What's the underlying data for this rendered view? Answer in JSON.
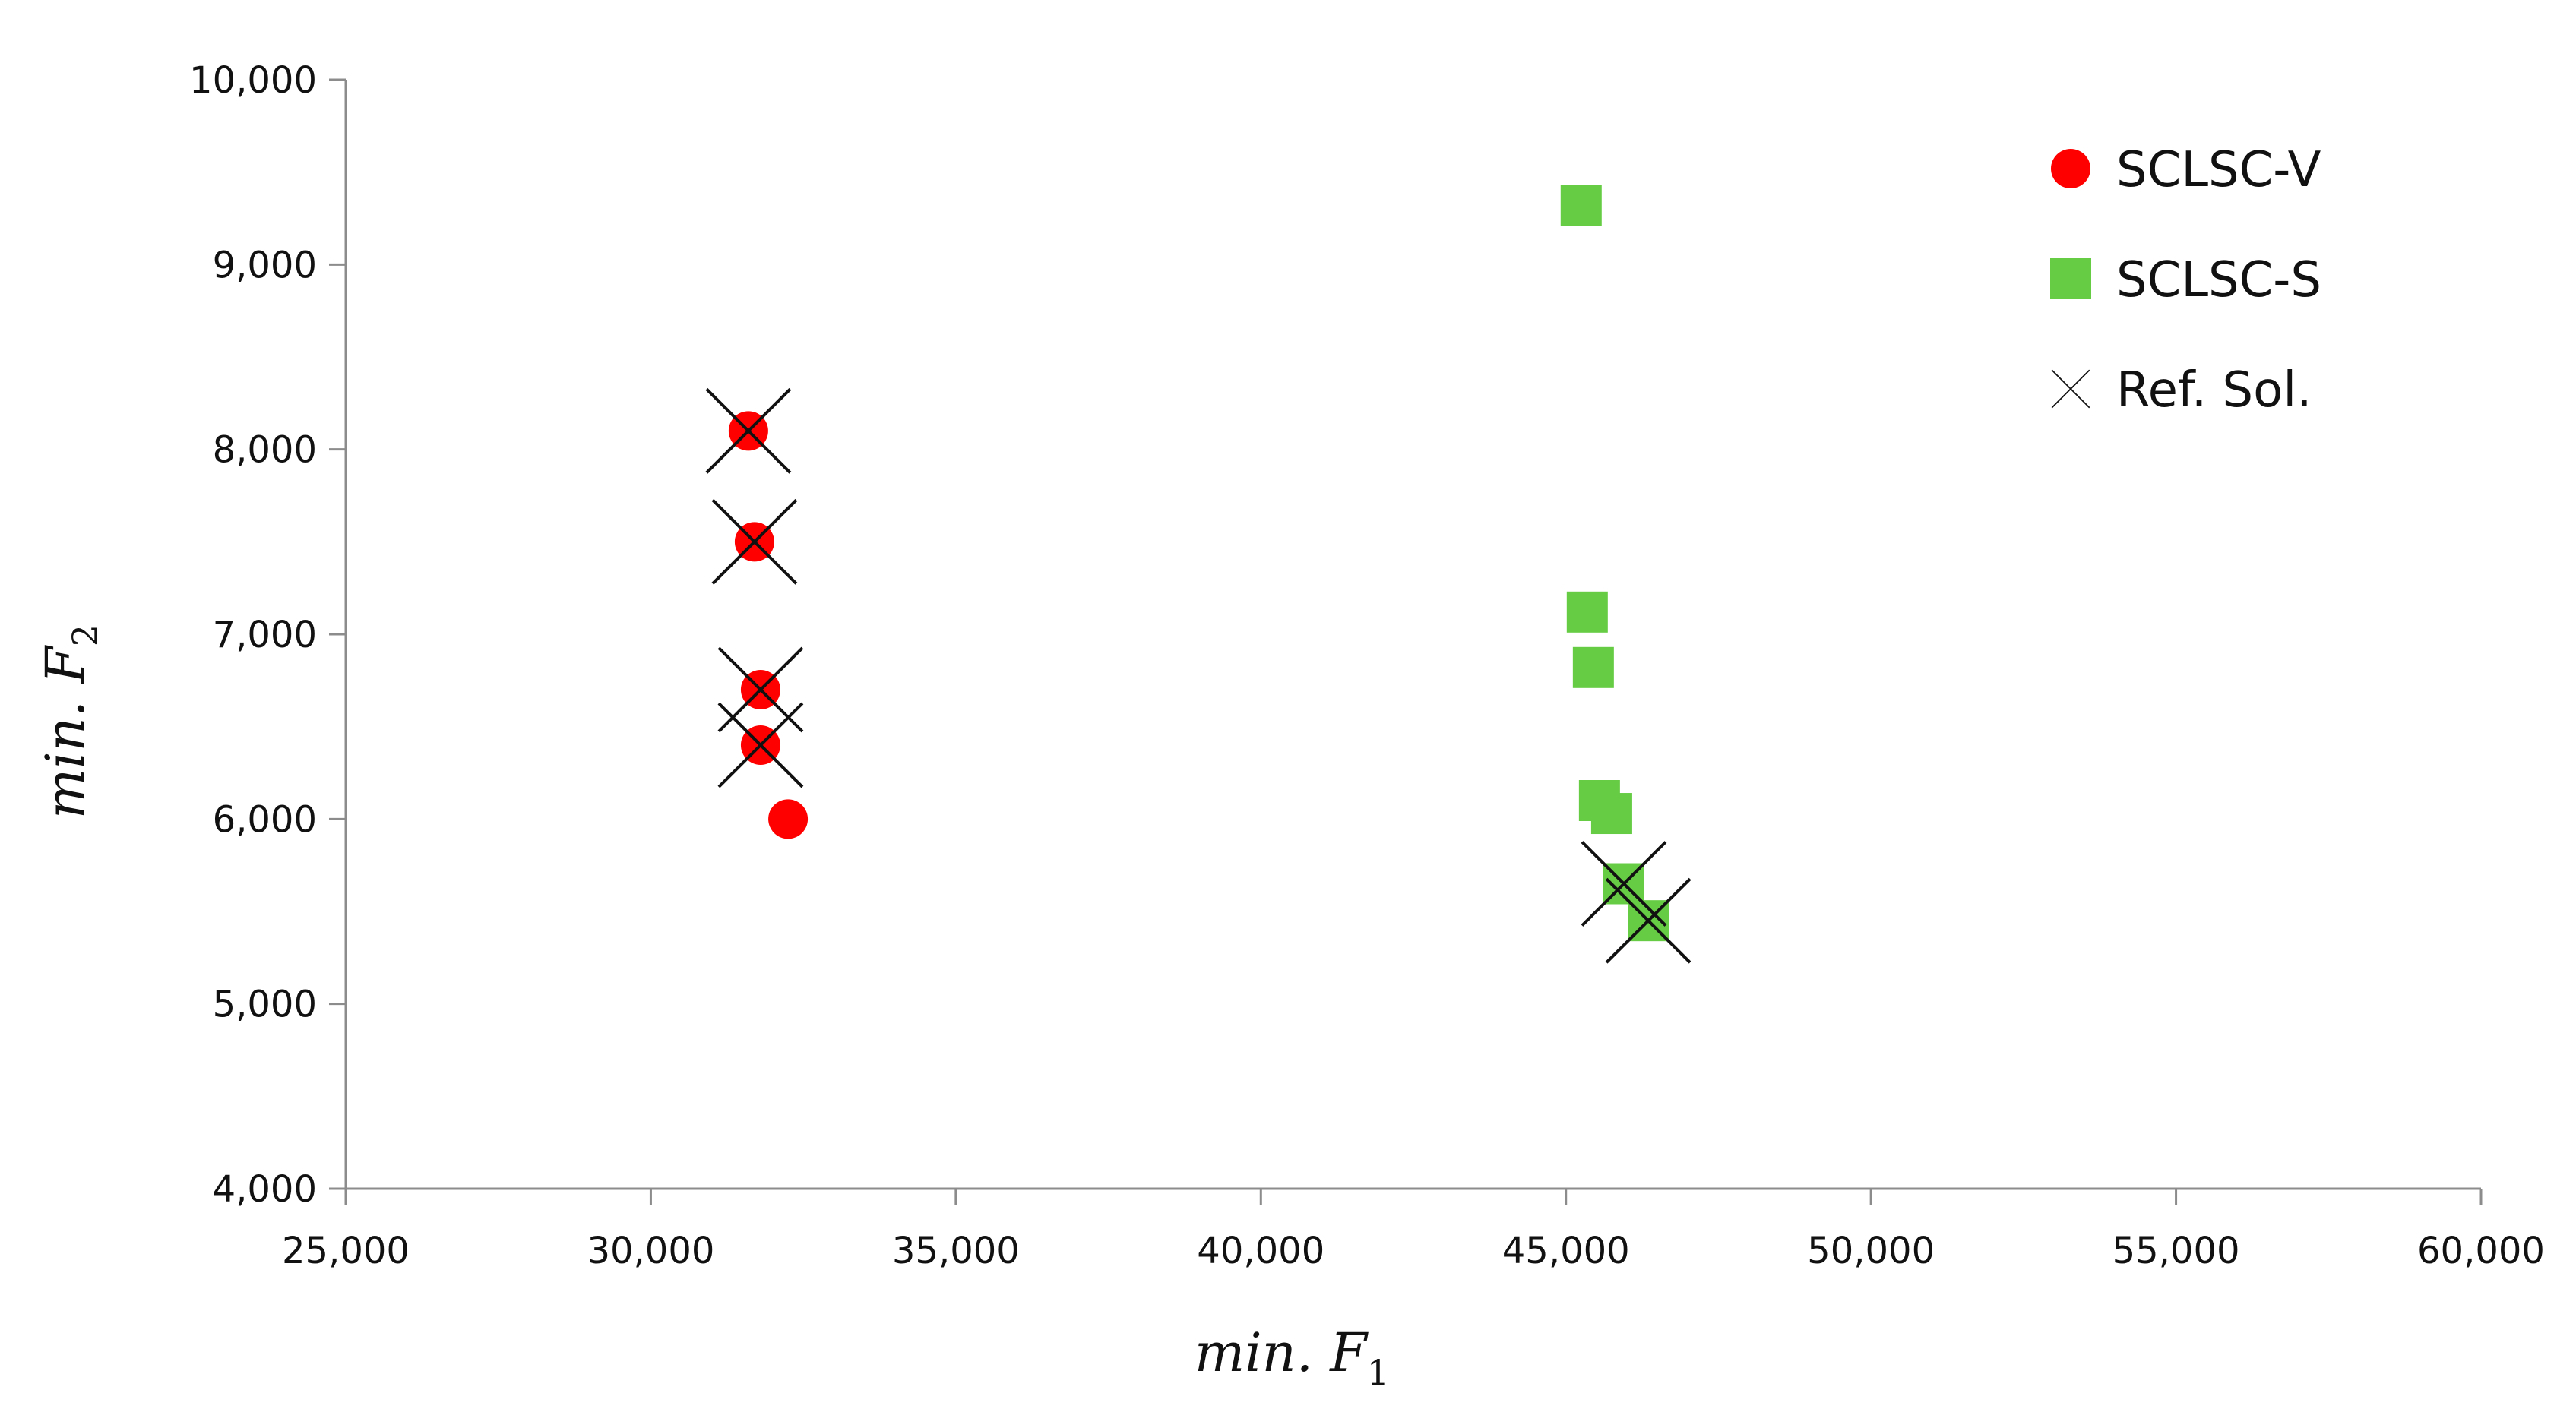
{
  "chart_data": {
    "type": "scatter",
    "xlabel": "min. F",
    "xlabel_sub": "1",
    "ylabel": "min. F",
    "ylabel_sub": "2",
    "xlim": [
      25000,
      60000
    ],
    "ylim": [
      4000,
      10000
    ],
    "x_ticks": [
      25000,
      30000,
      35000,
      40000,
      45000,
      50000,
      55000,
      60000
    ],
    "x_tick_labels": [
      "25,000",
      "30,000",
      "35,000",
      "40,000",
      "45,000",
      "50,000",
      "55,000",
      "60,000"
    ],
    "y_ticks": [
      4000,
      5000,
      6000,
      7000,
      8000,
      9000,
      10000
    ],
    "y_tick_labels": [
      "4,000",
      "5,000",
      "6,000",
      "7,000",
      "8,000",
      "9,000",
      "10,000"
    ],
    "grid": false,
    "legend_position": "top-right",
    "series": [
      {
        "name": "SCLSC-V",
        "marker": "circle",
        "color": "#ff0000",
        "points": [
          {
            "x": 31600,
            "y": 8100
          },
          {
            "x": 31700,
            "y": 7500
          },
          {
            "x": 31800,
            "y": 6700
          },
          {
            "x": 31800,
            "y": 6400
          },
          {
            "x": 32250,
            "y": 6000
          }
        ]
      },
      {
        "name": "SCLSC-S",
        "marker": "square",
        "color": "#66cc44",
        "points": [
          {
            "x": 45250,
            "y": 9320
          },
          {
            "x": 45350,
            "y": 7120
          },
          {
            "x": 45450,
            "y": 6820
          },
          {
            "x": 45550,
            "y": 6100
          },
          {
            "x": 45750,
            "y": 6030
          },
          {
            "x": 45950,
            "y": 5650
          },
          {
            "x": 46350,
            "y": 5450
          }
        ]
      },
      {
        "name": "Ref. Sol.",
        "marker": "x",
        "color": "#111111",
        "points": [
          {
            "x": 31600,
            "y": 8100
          },
          {
            "x": 31700,
            "y": 7500
          },
          {
            "x": 31800,
            "y": 6700
          },
          {
            "x": 31800,
            "y": 6400
          },
          {
            "x": 45950,
            "y": 5650
          },
          {
            "x": 46350,
            "y": 5450
          }
        ]
      }
    ]
  }
}
